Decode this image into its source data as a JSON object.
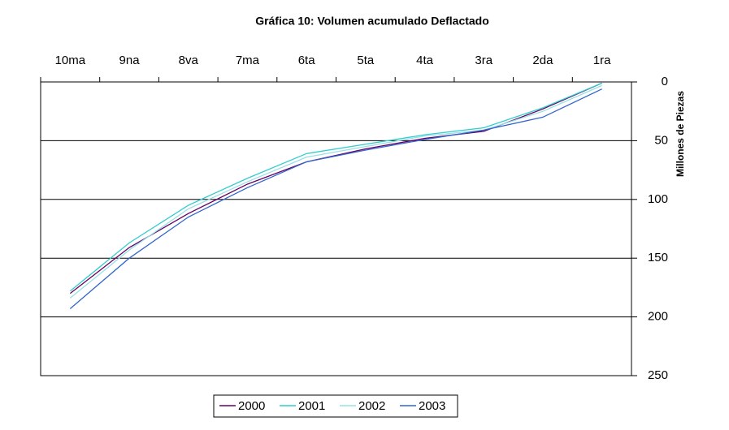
{
  "chart_data": {
    "type": "line",
    "title": "Gráfica 10: Volumen acumulado Deflactado",
    "y_label": "Millones de Piezas",
    "categories": [
      "10ma",
      "9na",
      "8va",
      "7ma",
      "6ta",
      "5ta",
      "4ta",
      "3ra",
      "2da",
      "1ra"
    ],
    "series": [
      {
        "name": "2000",
        "color": "#660066",
        "values": [
          180,
          141,
          112,
          87,
          68,
          57,
          48,
          42,
          23,
          1
        ]
      },
      {
        "name": "2001",
        "color": "#33cccc",
        "values": [
          178,
          137,
          105,
          82,
          61,
          53,
          45,
          39,
          22,
          1
        ]
      },
      {
        "name": "2002",
        "color": "#99e0e6",
        "values": [
          184,
          143,
          108,
          85,
          64,
          55,
          46,
          41,
          25,
          3
        ]
      },
      {
        "name": "2003",
        "color": "#3366cc",
        "values": [
          193,
          150,
          115,
          90,
          68,
          58,
          49,
          41,
          30,
          6
        ]
      }
    ],
    "ylim": [
      0,
      250
    ],
    "yticks": [
      0,
      50,
      100,
      150,
      200,
      250
    ],
    "y_inverted": true,
    "grid": true,
    "legend": "bottom"
  }
}
